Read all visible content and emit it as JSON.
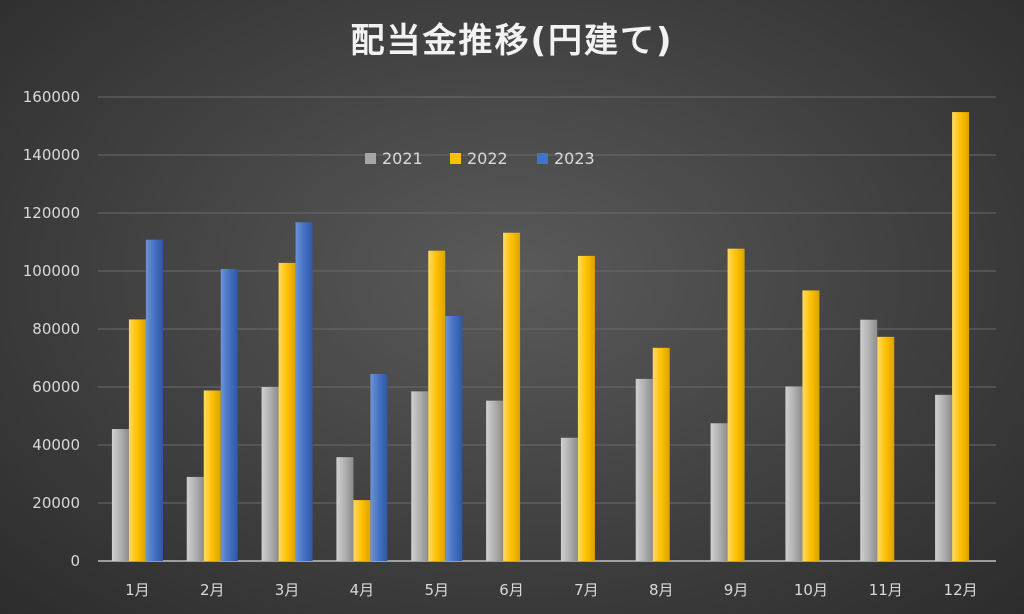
{
  "chart_data": {
    "type": "bar",
    "title": "配当金推移(円建て)",
    "xlabel": "",
    "ylabel": "",
    "ylim": [
      0,
      160000
    ],
    "yticks": [
      0,
      20000,
      40000,
      60000,
      80000,
      100000,
      120000,
      140000,
      160000
    ],
    "categories": [
      "1月",
      "2月",
      "3月",
      "4月",
      "5月",
      "6月",
      "7月",
      "8月",
      "9月",
      "10月",
      "11月",
      "12月"
    ],
    "series": [
      {
        "name": "2021",
        "color": "#a6a6a6",
        "values": [
          45500,
          29000,
          60000,
          35800,
          58500,
          55300,
          42500,
          62800,
          47500,
          60200,
          83200,
          57300
        ]
      },
      {
        "name": "2022",
        "color": "#ffc000",
        "values": [
          83300,
          58800,
          102800,
          21000,
          107000,
          113200,
          105200,
          73500,
          107700,
          93300,
          77300,
          154800
        ]
      },
      {
        "name": "2023",
        "color": "#4472c4",
        "values": [
          110800,
          100700,
          116800,
          64500,
          84500,
          null,
          null,
          null,
          null,
          null,
          null,
          null
        ]
      }
    ],
    "legend_position": "top-center",
    "grid": true
  }
}
